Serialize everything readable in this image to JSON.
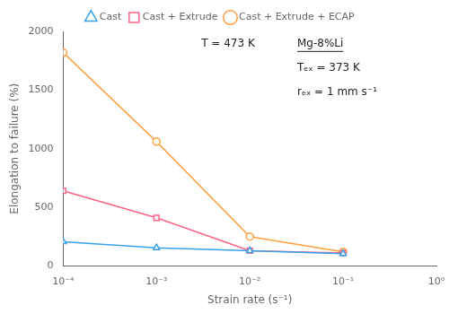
{
  "chart_data": {
    "type": "line",
    "xlabel": "Strain rate (s⁻¹)",
    "ylabel": "Elongation to failure (%)",
    "annotations": [
      "T = 473 K",
      "Mg-8%Li",
      "Tₑₓ = 373 K",
      "rₑₓ = 1 mm s⁻¹"
    ],
    "log": "x",
    "xlim": [
      0.0001,
      1.0
    ],
    "xticks": [
      {
        "value": 0.0001,
        "label": "10⁻⁴"
      },
      {
        "value": 0.001,
        "label": "10⁻³"
      },
      {
        "value": 0.01,
        "label": "10⁻²"
      },
      {
        "value": 0.1,
        "label": "10⁻¹"
      },
      {
        "value": 1.0,
        "label": "10⁰"
      }
    ],
    "ylim": [
      0,
      2000
    ],
    "yticks": [
      0,
      500,
      1000,
      1500,
      2000
    ],
    "grid": false,
    "legend": "top",
    "x": [
      0.0001,
      0.001,
      0.01,
      0.1
    ],
    "series": [
      {
        "name": "Cast",
        "marker": "triangle",
        "values": [
          205,
          155,
          130,
          105
        ]
      },
      {
        "name": "Cast + Extrude",
        "marker": "square",
        "values": [
          640,
          410,
          130,
          110
        ]
      },
      {
        "name": "Cast + Extrude + ECAP",
        "marker": "circle",
        "values": [
          1820,
          1060,
          250,
          120
        ]
      }
    ]
  }
}
